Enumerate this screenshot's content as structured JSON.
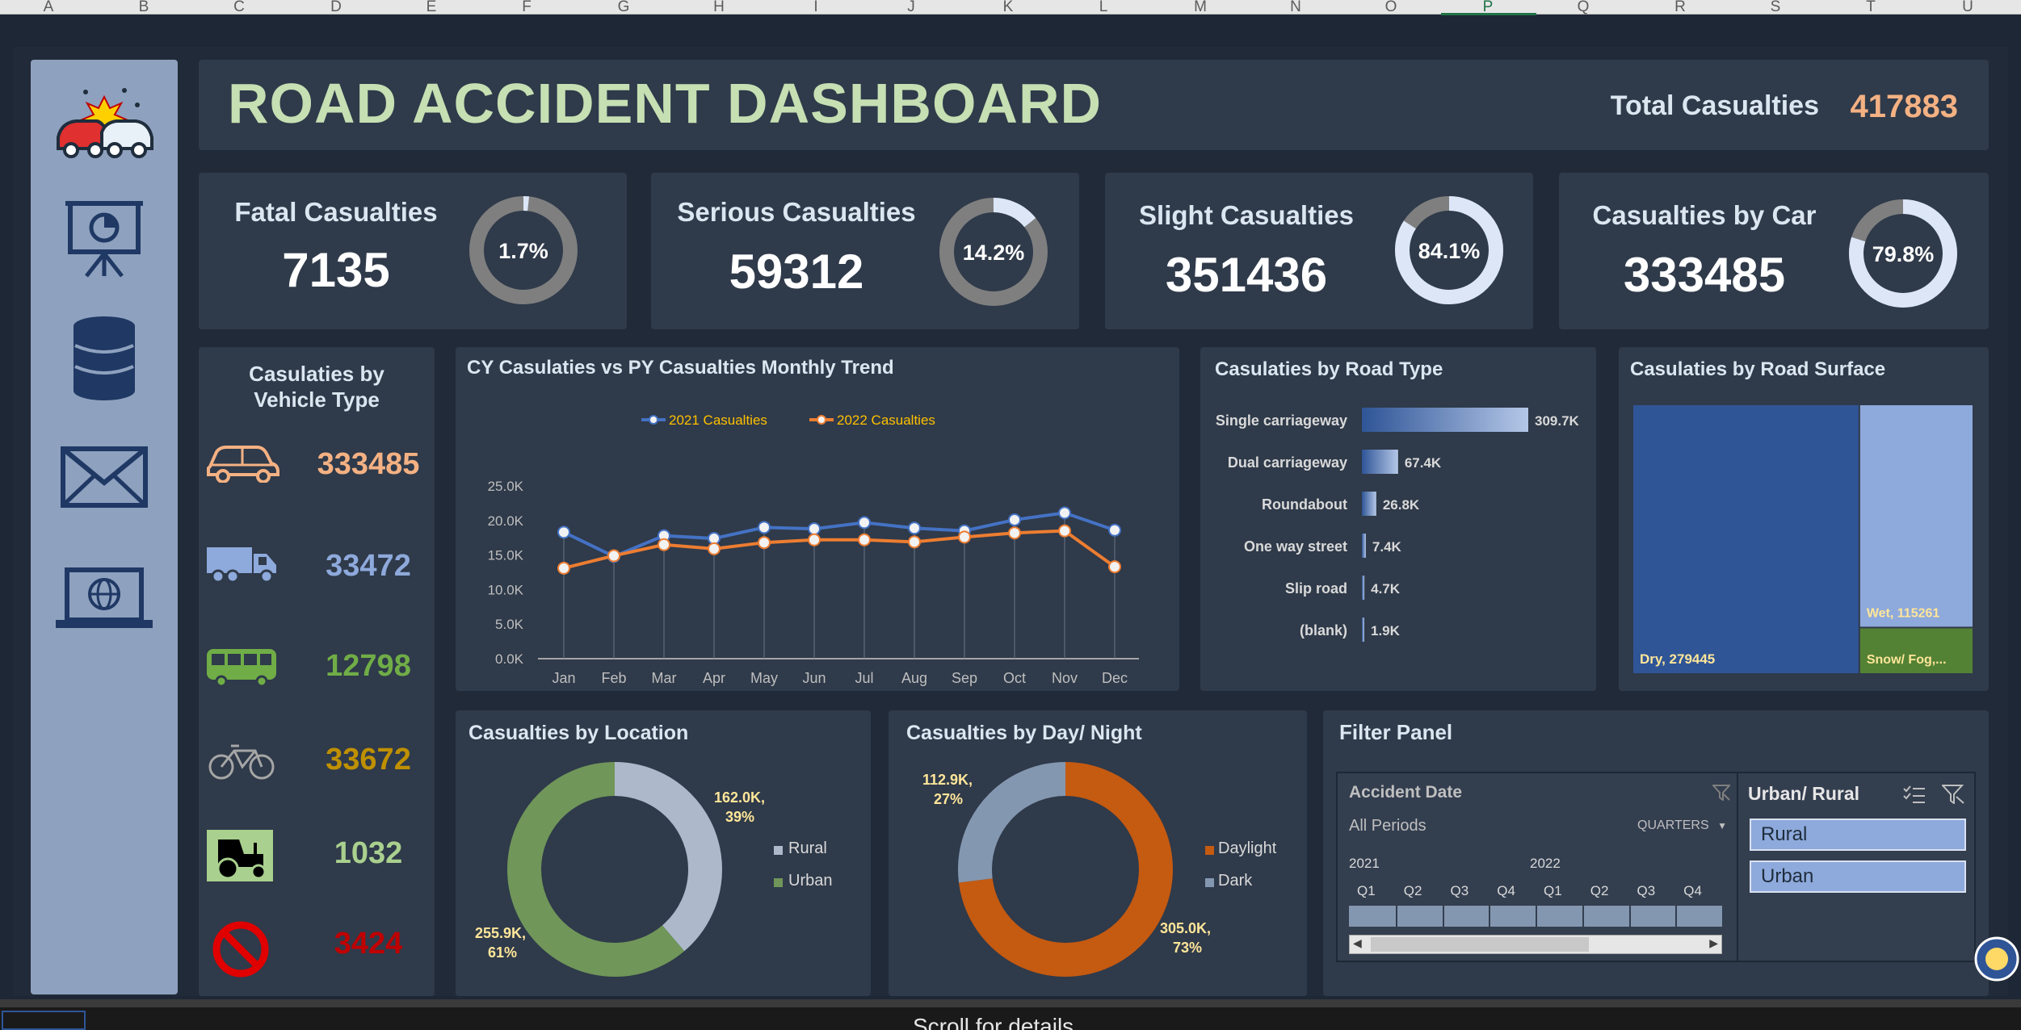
{
  "sheet": {
    "columns": [
      "A",
      "B",
      "C",
      "D",
      "E",
      "F",
      "G",
      "H",
      "I",
      "J",
      "K",
      "L",
      "M",
      "N",
      "O",
      "P",
      "Q",
      "R",
      "S",
      "T",
      "U"
    ],
    "selected_column": "P",
    "bottom_text": "Scroll for details"
  },
  "header": {
    "title": "ROAD ACCIDENT DASHBOARD",
    "total_label": "Total Casualties",
    "total_value": "417883"
  },
  "kpis": [
    {
      "label": "Fatal Casualties",
      "value": "7135",
      "pct_label": "1.7%",
      "pct": 1.7
    },
    {
      "label": "Serious Casualties",
      "value": "59312",
      "pct_label": "14.2%",
      "pct": 14.2
    },
    {
      "label": "Slight Casualties",
      "value": "351436",
      "pct_label": "84.1%",
      "pct": 84.1
    },
    {
      "label": "Casualties by Car",
      "value": "333485",
      "pct_label": "79.8%",
      "pct": 79.8
    }
  ],
  "vehicle": {
    "title_line1": "Casulaties by",
    "title_line2": "Vehicle Type",
    "items": [
      {
        "icon": "car-icon",
        "value": "333485",
        "color": "#f4b183"
      },
      {
        "icon": "truck-icon",
        "value": "33472",
        "color": "#8ea9db"
      },
      {
        "icon": "bus-icon",
        "value": "12798",
        "color": "#70ad47"
      },
      {
        "icon": "bicycle-icon",
        "value": "33672",
        "color": "#bf9000"
      },
      {
        "icon": "tractor-icon",
        "value": "1032",
        "color": "#a9d08e"
      },
      {
        "icon": "no-entry-icon",
        "value": "3424",
        "color": "#c00000"
      }
    ]
  },
  "trend": {
    "title": "CY Casulaties vs PY Casualties Monthly Trend",
    "legend_2021": "2021 Casualties",
    "legend_2022": "2022 Casualties"
  },
  "road_type": {
    "title": "Casulaties by Road Type"
  },
  "surface": {
    "title": "Casulaties by Road Surface",
    "dry_label": "Dry, 279445",
    "wet_label": "Wet, 115261",
    "snow_label": "Snow/ Fog,..."
  },
  "location": {
    "title": "Casualties by Location",
    "rural_label": "162.0K,",
    "rural_pct": "39%",
    "urban_label": "255.9K,",
    "urban_pct": "61%",
    "legend_rural": "Rural",
    "legend_urban": "Urban"
  },
  "daynight": {
    "title": "Casualties by Day/ Night",
    "dark_label": "112.9K,",
    "dark_pct": "27%",
    "day_label": "305.0K,",
    "day_pct": "73%",
    "legend_day": "Daylight",
    "legend_dark": "Dark"
  },
  "filter": {
    "title": "Filter Panel",
    "date_title": "Accident Date",
    "all_periods": "All Periods",
    "quarters": "QUARTERS",
    "years": [
      "2021",
      "2022"
    ],
    "quarter_labels": [
      "Q1",
      "Q2",
      "Q3",
      "Q4",
      "Q1",
      "Q2",
      "Q3",
      "Q4"
    ],
    "urban_title": "Urban/ Rural",
    "options": [
      "Rural",
      "Urban"
    ]
  },
  "colors": {
    "series_2021": "#4472c4",
    "series_2022": "#ed7d31",
    "rural": "#adb9ca",
    "urban": "#70965a",
    "daylight": "#c55a11",
    "dark": "#8497b0"
  },
  "chart_data": [
    {
      "type": "line",
      "title": "CY Casulaties vs PY Casualties Monthly Trend",
      "categories": [
        "Jan",
        "Feb",
        "Mar",
        "Apr",
        "May",
        "Jun",
        "Jul",
        "Aug",
        "Sep",
        "Oct",
        "Nov",
        "Dec"
      ],
      "series": [
        {
          "name": "2021 Casualties",
          "values": [
            18.3,
            14.8,
            17.8,
            17.4,
            19.0,
            18.8,
            19.7,
            18.9,
            18.5,
            20.1,
            21.1,
            18.6
          ]
        },
        {
          "name": "2022 Casualties",
          "values": [
            13.1,
            14.9,
            16.5,
            15.9,
            16.8,
            17.2,
            17.2,
            16.9,
            17.6,
            18.2,
            18.5,
            13.3
          ]
        }
      ],
      "ylim": [
        0,
        25
      ],
      "yticks": [
        "0.0K",
        "5.0K",
        "10.0K",
        "15.0K",
        "20.0K",
        "25.0K"
      ],
      "legend": "top"
    },
    {
      "type": "bar",
      "title": "Casulaties by Road Type",
      "categories": [
        "Single carriageway",
        "Dual carriageway",
        "Roundabout",
        "One way street",
        "Slip road",
        "(blank)"
      ],
      "values": [
        309.7,
        67.4,
        26.8,
        7.4,
        4.7,
        1.9
      ],
      "value_labels": [
        "309.7K",
        "67.4K",
        "26.8K",
        "7.4K",
        "4.7K",
        "1.9K"
      ]
    },
    {
      "type": "heatmap",
      "title": "Casulaties by Road Surface",
      "categories": [
        "Dry",
        "Wet",
        "Snow/ Fog"
      ],
      "values": [
        279445,
        115261,
        23177
      ]
    },
    {
      "type": "pie",
      "title": "Casualties by Location",
      "categories": [
        "Rural",
        "Urban"
      ],
      "values": [
        162.0,
        255.9
      ]
    },
    {
      "type": "pie",
      "title": "Casualties by Day/ Night",
      "categories": [
        "Daylight",
        "Dark"
      ],
      "values": [
        305.0,
        112.9
      ]
    }
  ]
}
